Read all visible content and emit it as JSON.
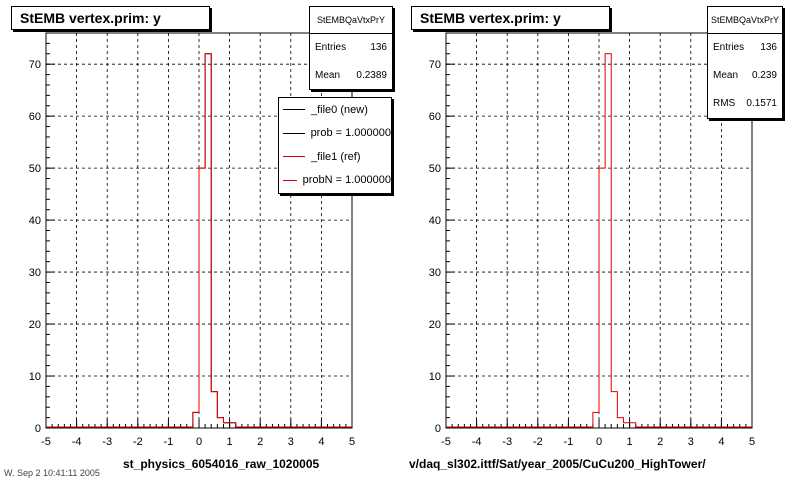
{
  "footer_text": "W. Sep 2 10:41:11 2005",
  "chart_data": [
    {
      "type": "histogram",
      "title": "StEMB  vertex.prim: y",
      "xlabel": "st_physics_6054016_raw_1020005",
      "xlim": [
        -5,
        5
      ],
      "ylim": [
        0,
        76
      ],
      "xticks": [
        "-5",
        "-4",
        "-3",
        "-2",
        "-1",
        "0",
        "1",
        "2",
        "3",
        "4",
        "5"
      ],
      "yticks": [
        "0",
        "10",
        "20",
        "30",
        "40",
        "50",
        "60",
        "70"
      ],
      "grid": true,
      "bin_edges": [
        -5,
        -4.8,
        -4.6,
        -4.4,
        -4.2,
        -4.0,
        -3.8,
        -3.6,
        -3.4,
        -3.2,
        -3.0,
        -2.8,
        -2.6,
        -2.4,
        -2.2,
        -2.0,
        -1.8,
        -1.6,
        -1.4,
        -1.2,
        -1.0,
        -0.8,
        -0.6,
        -0.4,
        -0.2,
        0.0,
        0.2,
        0.4,
        0.6,
        0.8,
        1.0,
        1.2,
        1.4,
        1.6,
        1.8,
        2.0,
        2.2,
        2.4,
        2.6,
        2.8,
        3.0,
        3.2,
        3.4,
        3.6,
        3.8,
        4.0,
        4.2,
        4.4,
        4.6,
        4.8,
        5.0
      ],
      "series": [
        {
          "name": "_file0 (new)",
          "color": "#000000",
          "values": [
            0,
            0,
            0,
            0,
            0,
            0,
            0,
            0,
            0,
            0,
            0,
            0,
            0,
            0,
            0,
            0,
            0,
            0,
            0,
            0,
            0,
            0,
            0,
            0,
            3,
            50,
            72,
            7,
            2,
            1,
            1,
            0,
            0,
            0,
            0,
            0,
            0,
            0,
            0,
            0,
            0,
            0,
            0,
            0,
            0,
            0,
            0,
            0,
            0,
            0
          ]
        },
        {
          "name": "_file1 (ref)",
          "color": "#e00000",
          "values": [
            0,
            0,
            0,
            0,
            0,
            0,
            0,
            0,
            0,
            0,
            0,
            0,
            0,
            0,
            0,
            0,
            0,
            0,
            0,
            0,
            0,
            0,
            0,
            0,
            3,
            50,
            72,
            7,
            2,
            1,
            1,
            0,
            0,
            0,
            0,
            0,
            0,
            0,
            0,
            0,
            0,
            0,
            0,
            0,
            0,
            0,
            0,
            0,
            0,
            0
          ]
        }
      ],
      "stats": {
        "name": "StEMBQaVtxPrY",
        "entries_label": "Entries",
        "entries": "136",
        "mean_label": "Mean",
        "mean": "0.2389"
      },
      "legend": [
        "_file0 (new)",
        "prob = 1.000000",
        "_file1 (ref)",
        "probN = 1.000000"
      ]
    },
    {
      "type": "histogram",
      "title": "StEMB  vertex.prim: y",
      "xlabel": "v/daq_sl302.ittf/Sat/year_2005/CuCu200_HighTower/",
      "xlim": [
        -5,
        5
      ],
      "ylim": [
        0,
        76
      ],
      "xticks": [
        "-5",
        "-4",
        "-3",
        "-2",
        "-1",
        "0",
        "1",
        "2",
        "3",
        "4",
        "5"
      ],
      "yticks": [
        "0",
        "10",
        "20",
        "30",
        "40",
        "50",
        "60",
        "70"
      ],
      "grid": true,
      "bin_edges": [
        -5,
        -4.8,
        -4.6,
        -4.4,
        -4.2,
        -4.0,
        -3.8,
        -3.6,
        -3.4,
        -3.2,
        -3.0,
        -2.8,
        -2.6,
        -2.4,
        -2.2,
        -2.0,
        -1.8,
        -1.6,
        -1.4,
        -1.2,
        -1.0,
        -0.8,
        -0.6,
        -0.4,
        -0.2,
        0.0,
        0.2,
        0.4,
        0.6,
        0.8,
        1.0,
        1.2,
        1.4,
        1.6,
        1.8,
        2.0,
        2.2,
        2.4,
        2.6,
        2.8,
        3.0,
        3.2,
        3.4,
        3.6,
        3.8,
        4.0,
        4.2,
        4.4,
        4.6,
        4.8,
        5.0
      ],
      "series": [
        {
          "name": "",
          "color": "#e00000",
          "values": [
            0,
            0,
            0,
            0,
            0,
            0,
            0,
            0,
            0,
            0,
            0,
            0,
            0,
            0,
            0,
            0,
            0,
            0,
            0,
            0,
            0,
            0,
            0,
            0,
            3,
            50,
            72,
            7,
            2,
            1,
            1,
            0,
            0,
            0,
            0,
            0,
            0,
            0,
            0,
            0,
            0,
            0,
            0,
            0,
            0,
            0,
            0,
            0,
            0,
            0
          ]
        }
      ],
      "stats": {
        "name": "StEMBQaVtxPrY",
        "entries_label": "Entries",
        "entries": "136",
        "mean_label": "Mean",
        "mean": "0.239",
        "rms_label": "RMS",
        "rms": "0.1571"
      }
    }
  ]
}
